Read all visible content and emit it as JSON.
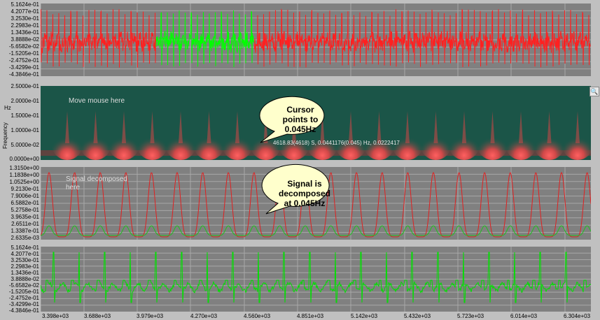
{
  "panel1": {
    "ticks": [
      "5.1624e-01",
      "4.2077e-01",
      "3.2530e-01",
      "2.2983e-01",
      "1.3436e-01",
      "3.8888e-02",
      "-5.6582e-02",
      "-1.5205e-01",
      "-2.4752e-01",
      "-3.4299e-01",
      "-4.3846e-01"
    ]
  },
  "panel2": {
    "ticks": [
      "2.5000e-01",
      "2.0000e-01",
      "1.5000e-01",
      "1.0000e-01",
      "5.0000e-02",
      "0.0000e+00"
    ],
    "axis_unit": "Hz",
    "axis_title": "Frequency",
    "overlay_text": "Move mouse here",
    "readout": "4618.83(4618) S, 0.0441176(0.045) Hz, 0.0222417",
    "callout": [
      "Cursor",
      "points to",
      "0.045Hz"
    ]
  },
  "panel3": {
    "ticks": [
      "1.3150e+00",
      "1.1838e+00",
      "1.0525e+00",
      "9.2130e-01",
      "7.9006e-01",
      "6.5882e-01",
      "5.2758e-01",
      "3.9635e-01",
      "2.6511e-01",
      "1.3387e-01",
      "2.6335e-03"
    ],
    "overlay_text_1": "Signal decomposed",
    "overlay_text_2": "here",
    "callout": [
      "Signal is",
      "decomposed",
      "at 0.045Hz"
    ]
  },
  "panel4": {
    "ticks": [
      "5.1624e-01",
      "4.2077e-01",
      "3.2530e-01",
      "2.2983e-01",
      "1.3436e-01",
      "3.8888e-02",
      "-5.6582e-02",
      "-1.5205e-01",
      "-2.4752e-01",
      "-3.4299e-01",
      "-4.3846e-01"
    ]
  },
  "xaxis": {
    "ticks": [
      "3.398e+03",
      "3.688e+03",
      "3.979e+03",
      "4.270e+03",
      "4.560e+03",
      "4.851e+03",
      "5.142e+03",
      "5.432e+03",
      "5.723e+03",
      "6.014e+03",
      "6.304e+03"
    ]
  },
  "colors": {
    "signal": "#ff2020",
    "highlight": "#00ff00",
    "spectrogram_bg": "#1b5548",
    "plot_bg": "#808080"
  },
  "icons": {
    "zoom": "magnifier-icon"
  }
}
